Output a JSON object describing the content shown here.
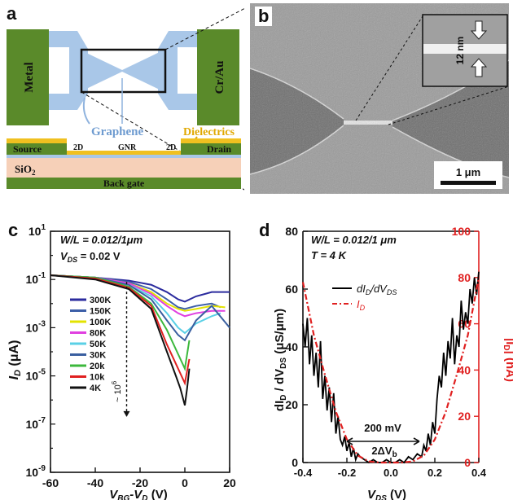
{
  "panels": {
    "a": {
      "letter": "a",
      "labels": {
        "metal": "Metal",
        "crau": "Cr/Au",
        "graphene": "Graphene",
        "dielectrics": "Dielectrics",
        "source": "Source",
        "drain": "Drain",
        "twod_left": "2D",
        "gnr": "GNR",
        "twod_right": "2D",
        "sio2": "SiO",
        "sio2_sub": "2",
        "backgate": "Back gate"
      },
      "colors": {
        "metal": "#5a8a2a",
        "graphene": "#a9c7e8",
        "dielectric": "#f0c020",
        "sio2": "#f6d0b8"
      }
    },
    "b": {
      "letter": "b",
      "inset_label": "12 nm",
      "scalebar_label": "1 μm"
    },
    "c": {
      "letter": "c",
      "annotation_wl": "W/L = 0.012/1μm",
      "annotation_vds": "V",
      "annotation_vds_sub": "DS",
      "annotation_vds_val": " = 0.02 V",
      "ratio_label": "~ 10",
      "ratio_sup": "6",
      "ylabel_main": "I",
      "ylabel_sub": "D",
      "ylabel_unit": " (μA)",
      "xlabel_main": "V",
      "xlabel_sub1": "BG",
      "xlabel_mid": "-V",
      "xlabel_sub2": "D",
      "xlabel_unit": " (V)"
    },
    "d": {
      "letter": "d",
      "annotation_wl": "W/L = 0.012/1 μm",
      "annotation_t": "T = 4 K",
      "arrow_label": "200 mV",
      "gap_label": "2ΔV",
      "gap_sub": "b",
      "legend_1": "dI",
      "legend_1_sub": "D",
      "legend_1_mid": "/dV",
      "legend_1_sub2": "DS",
      "legend_2": "I",
      "legend_2_sub": "D",
      "ylabel_left": "dI",
      "ylabel_left_sub": "D",
      "ylabel_left_mid": " / dV",
      "ylabel_left_sub2": "DS",
      "ylabel_left_unit": " (μS/μm)",
      "ylabel_right": "|I",
      "ylabel_right_sub": "D",
      "ylabel_right_unit": "| (nA)",
      "xlabel_main": "V",
      "xlabel_sub": "DS",
      "xlabel_unit": " (V)"
    }
  },
  "chart_data": [
    {
      "type": "line",
      "panel": "c",
      "xlim": [
        -60,
        20
      ],
      "ylog": true,
      "ylim": [
        1e-09,
        10
      ],
      "x_ticks": [
        -60,
        -40,
        -20,
        0,
        20
      ],
      "y_tick_exponents": [
        -9,
        -7,
        -5,
        -3,
        -1,
        1
      ],
      "series": [
        {
          "name": "300K",
          "color": "#2b2b9e",
          "x": [
            -60,
            -40,
            -25,
            -15,
            -8,
            -3,
            0,
            5,
            12,
            20
          ],
          "y": [
            0.15,
            0.12,
            0.09,
            0.06,
            0.03,
            0.015,
            0.012,
            0.02,
            0.03,
            0.03
          ]
        },
        {
          "name": "150K",
          "color": "#3d5fa8",
          "x": [
            -60,
            -40,
            -25,
            -15,
            -8,
            -3,
            0,
            5,
            12,
            16
          ],
          "y": [
            0.15,
            0.12,
            0.08,
            0.04,
            0.015,
            0.007,
            0.006,
            0.008,
            0.01,
            0.007
          ]
        },
        {
          "name": "100K",
          "color": "#e3e300",
          "x": [
            -60,
            -40,
            -25,
            -15,
            -8,
            -3,
            0,
            5,
            12,
            18
          ],
          "y": [
            0.15,
            0.12,
            0.07,
            0.03,
            0.01,
            0.006,
            0.005,
            0.006,
            0.008,
            0.007
          ]
        },
        {
          "name": "80K",
          "color": "#e040e0",
          "x": [
            -60,
            -40,
            -25,
            -15,
            -8,
            -3,
            0,
            5,
            12,
            18
          ],
          "y": [
            0.15,
            0.12,
            0.07,
            0.025,
            0.008,
            0.004,
            0.003,
            0.004,
            0.005,
            0.005
          ]
        },
        {
          "name": "50K",
          "color": "#5ad0e6",
          "x": [
            -60,
            -40,
            -25,
            -15,
            -8,
            -3,
            0,
            5,
            12,
            16
          ],
          "y": [
            0.15,
            0.12,
            0.06,
            0.02,
            0.004,
            0.001,
            0.0006,
            0.0015,
            0.003,
            0.004
          ]
        },
        {
          "name": "30K",
          "color": "#3a5fa0",
          "x": [
            -60,
            -40,
            -25,
            -15,
            -8,
            -3,
            0,
            5,
            12,
            20
          ],
          "y": [
            0.15,
            0.12,
            0.06,
            0.015,
            0.002,
            0.0005,
            0.0003,
            0.002,
            0.008,
            0.001
          ]
        },
        {
          "name": "20k",
          "color": "#3cb83c",
          "x": [
            -60,
            -40,
            -25,
            -15,
            -8,
            -3,
            0,
            2
          ],
          "y": [
            0.15,
            0.12,
            0.05,
            0.01,
            0.0008,
            8e-05,
            2e-05,
            0.0003
          ]
        },
        {
          "name": "10k",
          "color": "#e02020",
          "x": [
            -60,
            -40,
            -25,
            -15,
            -8,
            -3,
            0,
            2
          ],
          "y": [
            0.15,
            0.11,
            0.045,
            0.008,
            0.0002,
            2e-05,
            5e-06,
            5e-05
          ]
        },
        {
          "name": "4K",
          "color": "#111111",
          "x": [
            -60,
            -40,
            -25,
            -15,
            -8,
            -4,
            -2,
            0,
            1,
            2
          ],
          "y": [
            0.15,
            0.1,
            0.04,
            0.006,
            0.0001,
            1e-05,
            3e-06,
            6e-07,
            3e-06,
            2e-05
          ]
        }
      ]
    },
    {
      "type": "line",
      "panel": "d",
      "xlim": [
        -0.4,
        0.4
      ],
      "ylim_left": [
        0,
        80
      ],
      "ylim_right": [
        0,
        100
      ],
      "x_ticks": [
        -0.4,
        -0.2,
        0.0,
        0.2,
        0.4
      ],
      "y_ticks_left": [
        0,
        20,
        40,
        60,
        80
      ],
      "y_ticks_right": [
        0,
        20,
        40,
        60,
        80,
        100
      ],
      "series": [
        {
          "name": "dI_D/dV_DS",
          "axis": "left",
          "color": "#000000",
          "x": [
            -0.4,
            -0.39,
            -0.38,
            -0.37,
            -0.36,
            -0.35,
            -0.34,
            -0.33,
            -0.32,
            -0.31,
            -0.3,
            -0.29,
            -0.28,
            -0.27,
            -0.26,
            -0.25,
            -0.24,
            -0.23,
            -0.22,
            -0.21,
            -0.2,
            -0.19,
            -0.18,
            -0.17,
            -0.16,
            -0.15,
            -0.14,
            -0.12,
            -0.1,
            -0.08,
            -0.06,
            -0.04,
            -0.02,
            0,
            0.02,
            0.04,
            0.06,
            0.08,
            0.1,
            0.12,
            0.14,
            0.15,
            0.16,
            0.17,
            0.18,
            0.19,
            0.2,
            0.21,
            0.22,
            0.23,
            0.24,
            0.25,
            0.26,
            0.27,
            0.28,
            0.29,
            0.3,
            0.31,
            0.32,
            0.33,
            0.34,
            0.35,
            0.36,
            0.37,
            0.38,
            0.39,
            0.4
          ],
          "y": [
            48,
            40,
            50,
            34,
            44,
            30,
            38,
            26,
            42,
            22,
            30,
            18,
            26,
            14,
            24,
            10,
            16,
            8,
            6,
            9,
            4,
            7,
            2,
            5,
            1,
            3,
            2,
            1,
            0,
            1,
            0,
            0,
            1,
            0,
            0,
            1,
            0,
            2,
            1,
            3,
            2,
            6,
            4,
            10,
            6,
            14,
            10,
            22,
            30,
            26,
            38,
            30,
            42,
            36,
            50,
            34,
            44,
            40,
            56,
            46,
            52,
            48,
            60,
            55,
            64,
            58,
            66
          ]
        },
        {
          "name": "I_D",
          "axis": "right",
          "color": "#e02020",
          "x": [
            -0.4,
            -0.35,
            -0.3,
            -0.25,
            -0.2,
            -0.15,
            -0.1,
            -0.05,
            0,
            0.05,
            0.1,
            0.15,
            0.2,
            0.25,
            0.3,
            0.35,
            0.4
          ],
          "y": [
            78,
            55,
            38,
            22,
            10,
            3,
            0.5,
            0,
            0,
            0,
            0.5,
            3,
            10,
            22,
            38,
            55,
            80
          ]
        }
      ]
    }
  ]
}
